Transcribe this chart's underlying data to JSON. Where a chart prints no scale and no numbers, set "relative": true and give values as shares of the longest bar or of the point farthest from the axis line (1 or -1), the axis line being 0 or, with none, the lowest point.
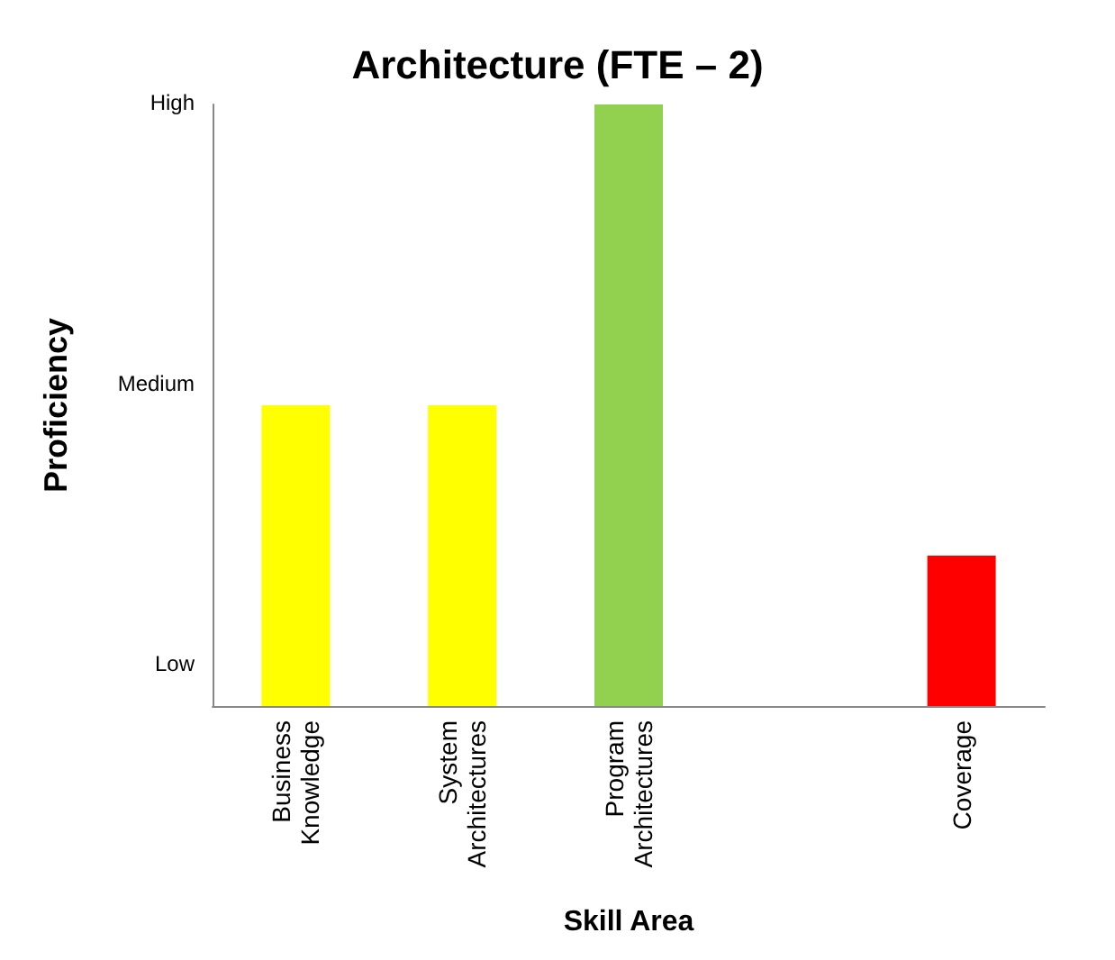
{
  "chart_data": {
    "type": "bar",
    "title": "Architecture (FTE – 2)",
    "xlabel": "Skill Area",
    "ylabel": "Proficiency",
    "categories": [
      "Business Knowledge",
      "System Architectures",
      "Program Architectures",
      null,
      "Coverage"
    ],
    "values": [
      0.5,
      0.5,
      1,
      null,
      0.25
    ],
    "colors": [
      "#ffff00",
      "#ffff00",
      "#92d050",
      "#ffff00",
      "#ff0000"
    ],
    "relative": true,
    "annotations": [
      "Low",
      "Medium",
      "High"
    ],
    "grid": false
  }
}
